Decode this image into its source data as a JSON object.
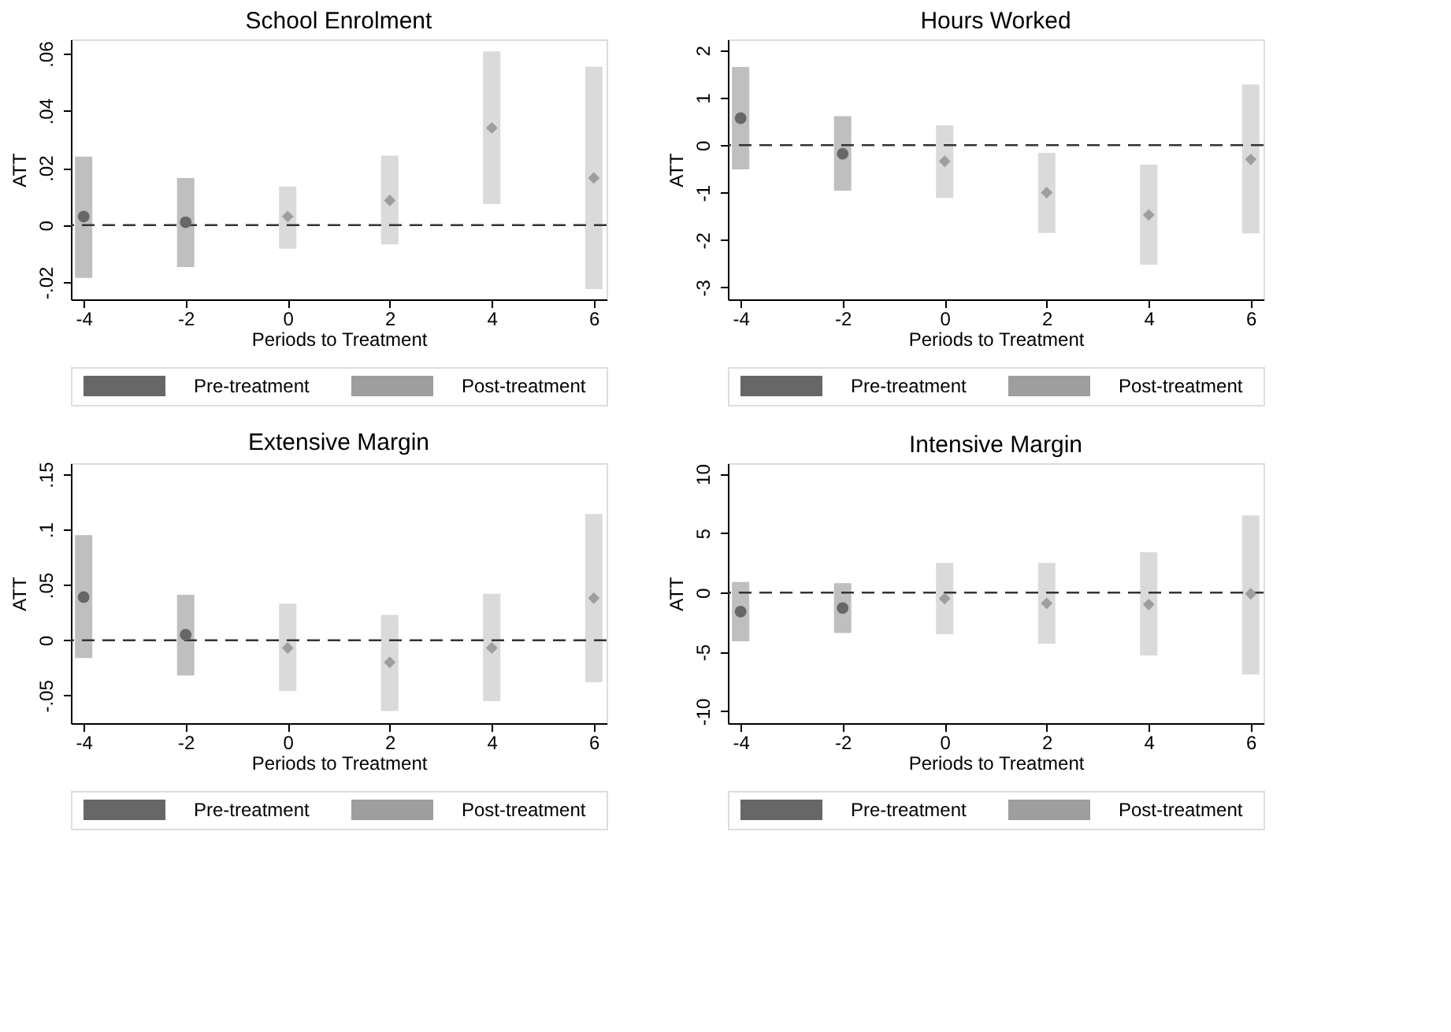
{
  "chart_data": [
    {
      "type": "scatter",
      "title": "School Enrolment",
      "xlabel": "Periods to Treatment",
      "ylabel": "ATT",
      "x": [
        -4,
        -2,
        0,
        2,
        4,
        6
      ],
      "xlim": [
        -4.25,
        6.25
      ],
      "xticks": [
        -4,
        -2,
        0,
        2,
        4,
        6
      ],
      "ylim": [
        -0.026,
        0.065
      ],
      "yticks": [
        {
          "value": -0.02,
          "label": "-.02"
        },
        0,
        {
          "value": 0.02,
          "label": ".02"
        },
        {
          "value": 0.04,
          "label": ".04"
        },
        {
          "value": 0.06,
          "label": ".06"
        }
      ],
      "grid": false,
      "legend": "bottom",
      "series": [
        {
          "name": "Pre-treatment",
          "color": "#676767",
          "marker": "circle",
          "values": [
            0.003,
            0.001,
            null,
            null,
            null,
            null
          ],
          "errors": [
            [
              -0.0185,
              0.024
            ],
            [
              -0.0147,
              0.0165
            ],
            null,
            null,
            null,
            null
          ]
        },
        {
          "name": "Post-treatment",
          "color": "#9e9e9e",
          "marker": "diamond",
          "values": [
            null,
            null,
            0.003,
            0.0086,
            0.034,
            0.0165
          ],
          "errors": [
            null,
            null,
            [
              -0.0083,
              0.0135
            ],
            [
              -0.0068,
              0.0243
            ],
            [
              0.0074,
              0.0608
            ],
            [
              -0.0224,
              0.0554
            ]
          ]
        }
      ],
      "ref_lines": [
        {
          "axis": "y",
          "value": 0,
          "line_style": "dashed"
        }
      ]
    },
    {
      "type": "scatter",
      "title": "Hours Worked",
      "xlabel": "Periods to Treatment",
      "ylabel": "ATT",
      "x": [
        -4,
        -2,
        0,
        2,
        4,
        6
      ],
      "xlim": [
        -4.25,
        6.25
      ],
      "xticks": [
        -4,
        -2,
        0,
        2,
        4,
        6
      ],
      "ylim": [
        -3.25,
        2.23
      ],
      "yticks": [
        -3,
        -2,
        -1,
        0,
        1,
        2
      ],
      "grid": false,
      "legend": "bottom",
      "series": [
        {
          "name": "Pre-treatment",
          "color": "#676767",
          "marker": "circle",
          "values": [
            0.57,
            -0.18,
            null,
            null,
            null,
            null
          ],
          "errors": [
            [
              -0.51,
              1.65
            ],
            [
              -0.96,
              0.61
            ],
            null,
            null,
            null,
            null
          ]
        },
        {
          "name": "Post-treatment",
          "color": "#9e9e9e",
          "marker": "diamond",
          "values": [
            null,
            null,
            -0.34,
            -1.0,
            -1.47,
            -0.3
          ],
          "errors": [
            null,
            null,
            [
              -1.11,
              0.42
            ],
            [
              -1.85,
              -0.16
            ],
            [
              -2.52,
              -0.41
            ],
            [
              -1.86,
              1.28
            ]
          ]
        }
      ],
      "ref_lines": [
        {
          "axis": "y",
          "value": 0,
          "line_style": "dashed"
        }
      ]
    },
    {
      "type": "scatter",
      "title": "Extensive Margin",
      "xlabel": "Periods to Treatment",
      "ylabel": "ATT",
      "x": [
        -4,
        -2,
        0,
        2,
        4,
        6
      ],
      "xlim": [
        -4.25,
        6.25
      ],
      "xticks": [
        -4,
        -2,
        0,
        2,
        4,
        6
      ],
      "ylim": [
        -0.075,
        0.16
      ],
      "yticks": [
        {
          "value": -0.05,
          "label": "-.05"
        },
        0,
        {
          "value": 0.05,
          "label": ".05"
        },
        {
          "value": 0.1,
          "label": ".1"
        },
        {
          "value": 0.15,
          "label": ".15"
        }
      ],
      "grid": false,
      "legend": "bottom",
      "series": [
        {
          "name": "Pre-treatment",
          "color": "#676767",
          "marker": "circle",
          "values": [
            0.039,
            0.005,
            null,
            null,
            null,
            null
          ],
          "errors": [
            [
              -0.016,
              0.095
            ],
            [
              -0.032,
              0.041
            ],
            null,
            null,
            null,
            null
          ]
        },
        {
          "name": "Post-treatment",
          "color": "#9e9e9e",
          "marker": "diamond",
          "values": [
            null,
            null,
            -0.007,
            -0.02,
            -0.007,
            0.038
          ],
          "errors": [
            null,
            null,
            [
              -0.046,
              0.033
            ],
            [
              -0.064,
              0.023
            ],
            [
              -0.055,
              0.042
            ],
            [
              -0.038,
              0.114
            ]
          ]
        }
      ],
      "ref_lines": [
        {
          "axis": "y",
          "value": 0,
          "line_style": "dashed"
        }
      ]
    },
    {
      "type": "scatter",
      "title": "Intensive Margin",
      "xlabel": "Periods to Treatment",
      "ylabel": "ATT",
      "x": [
        -4,
        -2,
        0,
        2,
        4,
        6
      ],
      "xlim": [
        -4.25,
        6.25
      ],
      "xticks": [
        -4,
        -2,
        0,
        2,
        4,
        6
      ],
      "ylim": [
        -11,
        10.9
      ],
      "yticks": [
        -10,
        -5,
        0,
        5,
        10
      ],
      "grid": false,
      "legend": "bottom",
      "series": [
        {
          "name": "Pre-treatment",
          "color": "#676767",
          "marker": "circle",
          "values": [
            -1.6,
            -1.3,
            null,
            null,
            null,
            null
          ],
          "errors": [
            [
              -4.1,
              0.9
            ],
            [
              -3.4,
              0.8
            ],
            null,
            null,
            null,
            null
          ]
        },
        {
          "name": "Post-treatment",
          "color": "#9e9e9e",
          "marker": "diamond",
          "values": [
            null,
            null,
            -0.5,
            -0.9,
            -1.0,
            -0.1
          ],
          "errors": [
            null,
            null,
            [
              -3.5,
              2.5
            ],
            [
              -4.3,
              2.5
            ],
            [
              -5.3,
              3.4
            ],
            [
              -6.9,
              6.5
            ]
          ]
        }
      ],
      "ref_lines": [
        {
          "axis": "y",
          "value": 0,
          "line_style": "dashed"
        }
      ]
    }
  ]
}
